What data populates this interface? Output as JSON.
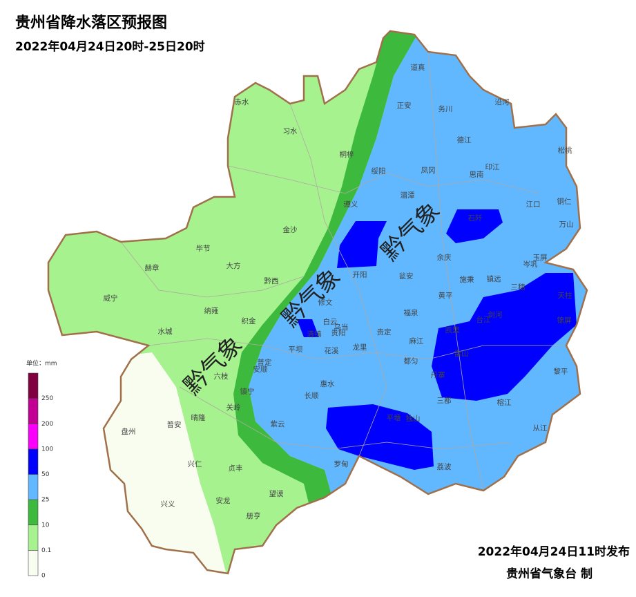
{
  "header": {
    "title": "贵州省降水落区预报图",
    "subtitle": "2022年04月24日20时-25日20时"
  },
  "legend": {
    "title": "单位：mm",
    "labels": [
      0,
      0.1,
      10,
      25,
      50,
      100,
      200,
      250
    ],
    "colors": [
      "#f8fdef",
      "#a6f28f",
      "#3dba3d",
      "#61b8ff",
      "#0000fe",
      "#fa00fa",
      "#c20094",
      "#800040"
    ]
  },
  "counties": [
    "赤水",
    "习水",
    "桐梓",
    "道真",
    "正安",
    "务川",
    "沿河",
    "德江",
    "松桃",
    "绥阳",
    "凤冈",
    "印江",
    "思南",
    "湄潭",
    "遵义",
    "江口",
    "铜仁",
    "石阡",
    "万山",
    "金沙",
    "毕节",
    "余庆",
    "玉屏",
    "岑巩",
    "赫章",
    "大方",
    "黔西",
    "开阳",
    "瓮安",
    "施秉",
    "镇远",
    "三穗",
    "天柱",
    "威宁",
    "修文",
    "黄平",
    "纳雍",
    "织金",
    "白云",
    "乌当",
    "台江",
    "剑河",
    "锦屏",
    "福泉",
    "水城",
    "清镇",
    "贵阳",
    "贵定",
    "麻江",
    "凯里",
    "平坝",
    "花溪",
    "龙里",
    "雷山",
    "普定",
    "都匀",
    "六枝",
    "安顺",
    "惠水",
    "丹寨",
    "黎平",
    "镇宁",
    "长顺",
    "三都",
    "榕江",
    "盘州",
    "普安",
    "晴隆",
    "关岭",
    "紫云",
    "平塘",
    "独山",
    "从江",
    "兴仁",
    "贞丰",
    "罗甸",
    "荔波",
    "望谟",
    "兴义",
    "安龙",
    "册亨"
  ],
  "watermarks": [
    "黔气象",
    "黔气象",
    "黔气象"
  ],
  "footer": {
    "issued": "2022年04月24日11时发布",
    "agency": "贵州省气象台 制"
  }
}
